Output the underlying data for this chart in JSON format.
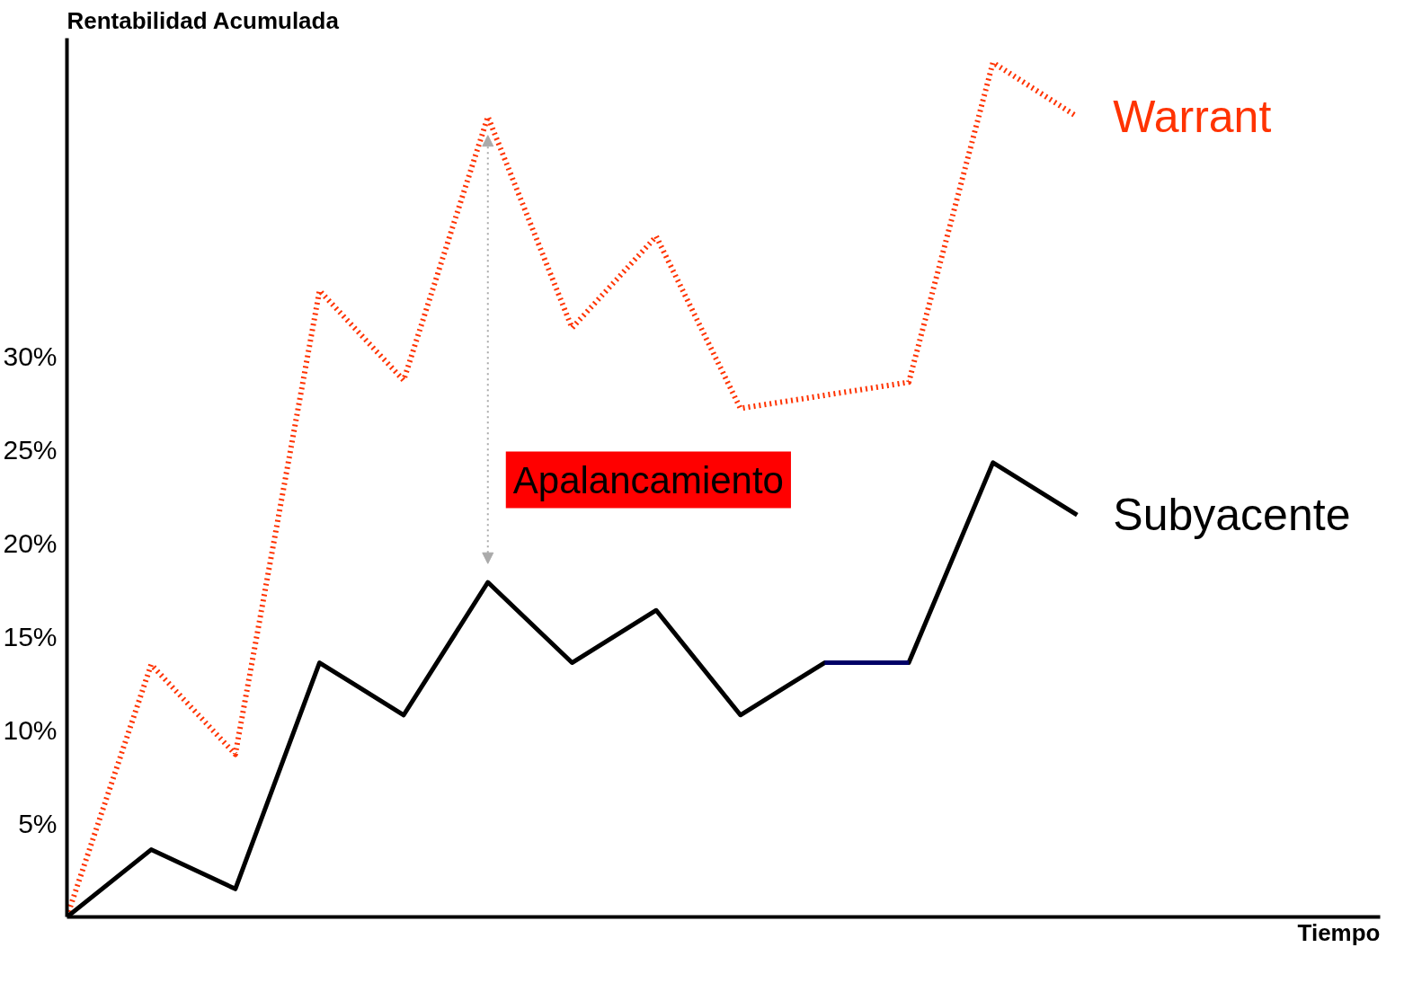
{
  "chart_data": {
    "type": "line",
    "ylabel": "Rentabilidad Acumulada",
    "categories": [
      null,
      null,
      null,
      null,
      null,
      null,
      null,
      null,
      null,
      null,
      null,
      null,
      null
    ],
    "ylim": [
      0,
      47
    ],
    "yticks": [
      {
        "value": 5,
        "label": "5%"
      },
      {
        "value": 10,
        "label": "10%"
      },
      {
        "value": 15,
        "label": "15%"
      },
      {
        "value": 20,
        "label": "20%"
      },
      {
        "value": 25,
        "label": "25%"
      },
      {
        "value": 30,
        "label": "30%"
      }
    ],
    "tick_labels": "y",
    "grid": false,
    "series": [
      {
        "name": "Warrant",
        "color": "#ff3300",
        "line_style": "dotted",
        "values": [
          0,
          13.5,
          8.7,
          33.5,
          28.7,
          42.8,
          31.5,
          36.4,
          27.2,
          null,
          28.6,
          45.7,
          42.8
        ]
      },
      {
        "name": "Subyacente",
        "color": "#000000",
        "line_style": "solid",
        "values": [
          0,
          3.6,
          1.5,
          13.6,
          10.8,
          17.9,
          13.6,
          16.4,
          10.8,
          13.6,
          13.6,
          24.3,
          21.5
        ]
      },
      {
        "color": "#000066",
        "line_style": "solid",
        "values": [
          null,
          null,
          null,
          null,
          null,
          null,
          null,
          null,
          null,
          13.6,
          13.6,
          null,
          null
        ]
      }
    ],
    "annotations": [
      "Apalancamiento",
      "Tiempo"
    ]
  }
}
